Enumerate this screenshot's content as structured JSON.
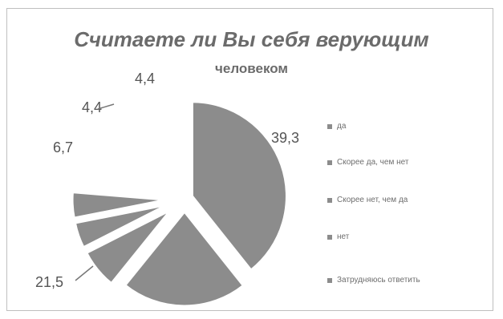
{
  "chart_data": {
    "type": "pie",
    "title_line1": "Считаете ли Вы себя верующим",
    "title_line2": "человеком",
    "categories": [
      "да",
      "Скорее да, чем нет",
      "Скорее нет, чем да",
      "нет",
      "Затрудняюсь ответить"
    ],
    "values": [
      39.3,
      21.5,
      6.7,
      4.4,
      4.4
    ],
    "data_labels": [
      "39,3",
      "21,5",
      "6,7",
      "4,4",
      "4,4"
    ],
    "legend_position": "right",
    "slice_color": "#8c8c8c"
  }
}
